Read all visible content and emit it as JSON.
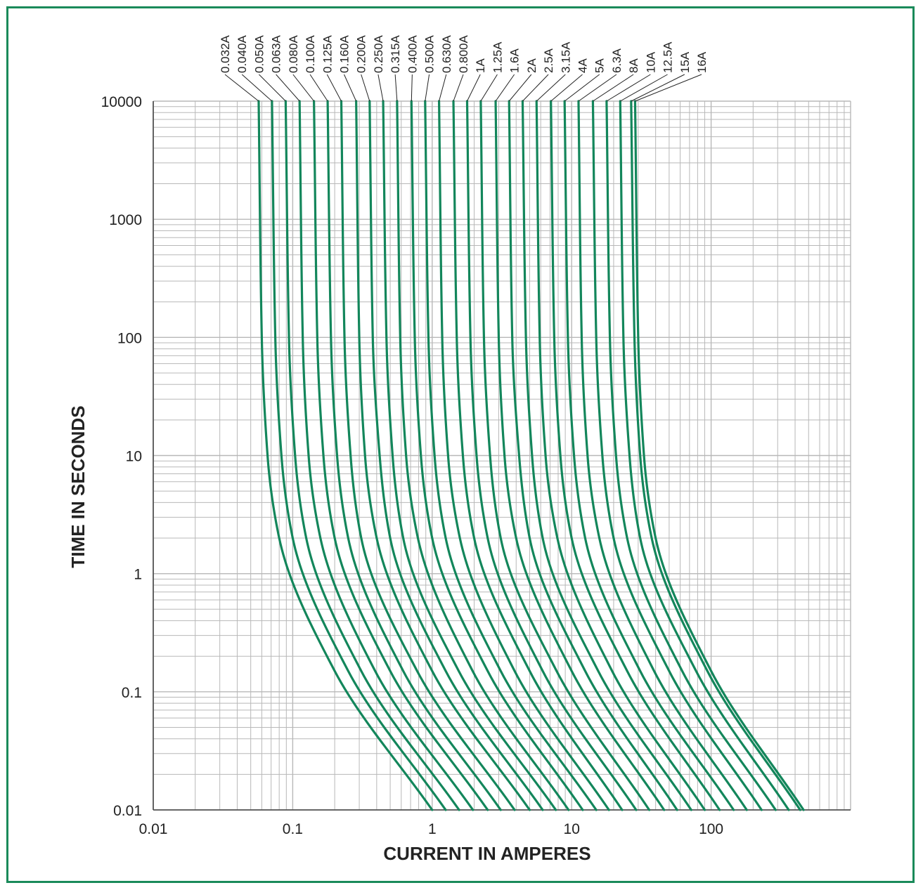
{
  "chart_data": {
    "type": "line",
    "title": "",
    "xlabel": "CURRENT IN AMPERES",
    "ylabel": "TIME IN SECONDS",
    "xscale": "log",
    "yscale": "log",
    "xlim": [
      0.01,
      1000
    ],
    "ylim": [
      0.01,
      10000
    ],
    "grid": true,
    "line_color": "#13865b",
    "frame_color": "#1a8a5a",
    "grid_color": "#b8b8b8",
    "x_ticks": [
      {
        "value": 0.01,
        "label": "0.01"
      },
      {
        "value": 0.1,
        "label": "0.1"
      },
      {
        "value": 1,
        "label": "1"
      },
      {
        "value": 10,
        "label": "10"
      },
      {
        "value": 100,
        "label": "100"
      }
    ],
    "y_ticks": [
      {
        "value": 10000,
        "label": "10000"
      },
      {
        "value": 1000,
        "label": "1000"
      },
      {
        "value": 100,
        "label": "100"
      },
      {
        "value": 10,
        "label": "10"
      },
      {
        "value": 1,
        "label": "1"
      },
      {
        "value": 0.1,
        "label": "0.1"
      },
      {
        "value": 0.01,
        "label": "0.01"
      }
    ],
    "series": [
      {
        "name": "0.032A",
        "points": [
          [
            0.057,
            10000
          ],
          [
            0.06,
            100
          ],
          [
            0.066,
            10
          ],
          [
            0.08,
            2
          ],
          [
            0.2,
            0.15
          ],
          [
            1.0,
            0.01
          ]
        ]
      },
      {
        "name": "0.040A",
        "points": [
          [
            0.071,
            10000
          ],
          [
            0.075,
            100
          ],
          [
            0.083,
            10
          ],
          [
            0.1,
            2
          ],
          [
            0.25,
            0.15
          ],
          [
            1.25,
            0.01
          ]
        ]
      },
      {
        "name": "0.050A",
        "points": [
          [
            0.089,
            10000
          ],
          [
            0.094,
            100
          ],
          [
            0.104,
            10
          ],
          [
            0.125,
            2
          ],
          [
            0.31,
            0.15
          ],
          [
            1.56,
            0.01
          ]
        ]
      },
      {
        "name": "0.063A",
        "points": [
          [
            0.112,
            10000
          ],
          [
            0.118,
            100
          ],
          [
            0.13,
            10
          ],
          [
            0.158,
            2
          ],
          [
            0.39,
            0.15
          ],
          [
            1.96,
            0.01
          ]
        ]
      },
      {
        "name": "0.080A",
        "points": [
          [
            0.142,
            10000
          ],
          [
            0.15,
            100
          ],
          [
            0.166,
            10
          ],
          [
            0.2,
            2
          ],
          [
            0.5,
            0.15
          ],
          [
            2.5,
            0.01
          ]
        ]
      },
      {
        "name": "0.100A",
        "points": [
          [
            0.178,
            10000
          ],
          [
            0.188,
            100
          ],
          [
            0.208,
            10
          ],
          [
            0.25,
            2
          ],
          [
            0.62,
            0.15
          ],
          [
            3.1,
            0.01
          ]
        ]
      },
      {
        "name": "0.125A",
        "points": [
          [
            0.223,
            10000
          ],
          [
            0.235,
            100
          ],
          [
            0.26,
            10
          ],
          [
            0.31,
            2
          ],
          [
            0.78,
            0.15
          ],
          [
            3.9,
            0.01
          ]
        ]
      },
      {
        "name": "0.160A",
        "points": [
          [
            0.285,
            10000
          ],
          [
            0.3,
            100
          ],
          [
            0.33,
            10
          ],
          [
            0.4,
            2
          ],
          [
            1.0,
            0.15
          ],
          [
            5.0,
            0.01
          ]
        ]
      },
      {
        "name": "0.200A",
        "points": [
          [
            0.356,
            10000
          ],
          [
            0.375,
            100
          ],
          [
            0.42,
            10
          ],
          [
            0.5,
            2
          ],
          [
            1.25,
            0.15
          ],
          [
            6.2,
            0.01
          ]
        ]
      },
      {
        "name": "0.250A",
        "points": [
          [
            0.445,
            10000
          ],
          [
            0.47,
            100
          ],
          [
            0.52,
            10
          ],
          [
            0.62,
            2
          ],
          [
            1.55,
            0.15
          ],
          [
            7.7,
            0.01
          ]
        ]
      },
      {
        "name": "0.315A",
        "points": [
          [
            0.56,
            10000
          ],
          [
            0.59,
            100
          ],
          [
            0.65,
            10
          ],
          [
            0.79,
            2
          ],
          [
            1.95,
            0.15
          ],
          [
            9.5,
            0.01
          ]
        ]
      },
      {
        "name": "0.400A",
        "points": [
          [
            0.71,
            10000
          ],
          [
            0.75,
            100
          ],
          [
            0.83,
            10
          ],
          [
            1.0,
            2
          ],
          [
            2.5,
            0.15
          ],
          [
            12,
            0.01
          ]
        ]
      },
      {
        "name": "0.500A",
        "points": [
          [
            0.89,
            10000
          ],
          [
            0.94,
            100
          ],
          [
            1.04,
            10
          ],
          [
            1.25,
            2
          ],
          [
            3.1,
            0.15
          ],
          [
            15,
            0.01
          ]
        ]
      },
      {
        "name": "0.630A",
        "points": [
          [
            1.12,
            10000
          ],
          [
            1.18,
            100
          ],
          [
            1.3,
            10
          ],
          [
            1.58,
            2
          ],
          [
            3.9,
            0.15
          ],
          [
            18.5,
            0.01
          ]
        ]
      },
      {
        "name": "0.800A",
        "points": [
          [
            1.42,
            10000
          ],
          [
            1.5,
            100
          ],
          [
            1.66,
            10
          ],
          [
            2.0,
            2
          ],
          [
            5.0,
            0.15
          ],
          [
            23,
            0.01
          ]
        ]
      },
      {
        "name": "1A",
        "points": [
          [
            1.78,
            10000
          ],
          [
            1.88,
            100
          ],
          [
            2.08,
            10
          ],
          [
            2.5,
            2
          ],
          [
            6.2,
            0.15
          ],
          [
            29,
            0.01
          ]
        ]
      },
      {
        "name": "1.25A",
        "points": [
          [
            2.23,
            10000
          ],
          [
            2.35,
            100
          ],
          [
            2.6,
            10
          ],
          [
            3.1,
            2
          ],
          [
            7.8,
            0.15
          ],
          [
            36,
            0.01
          ]
        ]
      },
      {
        "name": "1.6A",
        "points": [
          [
            2.85,
            10000
          ],
          [
            3.0,
            100
          ],
          [
            3.3,
            10
          ],
          [
            4.0,
            2
          ],
          [
            10,
            0.15
          ],
          [
            46,
            0.01
          ]
        ]
      },
      {
        "name": "2A",
        "points": [
          [
            3.56,
            10000
          ],
          [
            3.75,
            100
          ],
          [
            4.2,
            10
          ],
          [
            5.0,
            2
          ],
          [
            12.5,
            0.15
          ],
          [
            57,
            0.01
          ]
        ]
      },
      {
        "name": "2.5A",
        "points": [
          [
            4.45,
            10000
          ],
          [
            4.7,
            100
          ],
          [
            5.2,
            10
          ],
          [
            6.2,
            2
          ],
          [
            15.5,
            0.15
          ],
          [
            72,
            0.01
          ]
        ]
      },
      {
        "name": "3.15A",
        "points": [
          [
            5.6,
            10000
          ],
          [
            5.9,
            100
          ],
          [
            6.5,
            10
          ],
          [
            7.9,
            2
          ],
          [
            19.5,
            0.15
          ],
          [
            90,
            0.01
          ]
        ]
      },
      {
        "name": "4A",
        "points": [
          [
            7.1,
            10000
          ],
          [
            7.5,
            100
          ],
          [
            8.3,
            10
          ],
          [
            10,
            2
          ],
          [
            25,
            0.15
          ],
          [
            115,
            0.01
          ]
        ]
      },
      {
        "name": "5A",
        "points": [
          [
            8.9,
            10000
          ],
          [
            9.4,
            100
          ],
          [
            10.4,
            10
          ],
          [
            12.5,
            2
          ],
          [
            31,
            0.15
          ],
          [
            145,
            0.01
          ]
        ]
      },
      {
        "name": "6.3A",
        "points": [
          [
            11.2,
            10000
          ],
          [
            11.8,
            100
          ],
          [
            13,
            10
          ],
          [
            15.8,
            2
          ],
          [
            39,
            0.15
          ],
          [
            180,
            0.01
          ]
        ]
      },
      {
        "name": "8A",
        "points": [
          [
            14.2,
            10000
          ],
          [
            15,
            100
          ],
          [
            16.6,
            10
          ],
          [
            20,
            2
          ],
          [
            50,
            0.15
          ],
          [
            230,
            0.01
          ]
        ]
      },
      {
        "name": "10A",
        "points": [
          [
            17.8,
            10000
          ],
          [
            18.8,
            100
          ],
          [
            20.8,
            10
          ],
          [
            25,
            2
          ],
          [
            62,
            0.15
          ],
          [
            290,
            0.01
          ]
        ]
      },
      {
        "name": "12.5A",
        "points": [
          [
            22.3,
            10000
          ],
          [
            23.5,
            100
          ],
          [
            26,
            10
          ],
          [
            31,
            2
          ],
          [
            78,
            0.15
          ],
          [
            360,
            0.01
          ]
        ]
      },
      {
        "name": "15A",
        "points": [
          [
            26.7,
            10000
          ],
          [
            28.2,
            100
          ],
          [
            31,
            10
          ],
          [
            37.5,
            2
          ],
          [
            94,
            0.15
          ],
          [
            435,
            0.01
          ]
        ]
      },
      {
        "name": "16A",
        "points": [
          [
            28.5,
            10000
          ],
          [
            30,
            100
          ],
          [
            33,
            10
          ],
          [
            40,
            2
          ],
          [
            100,
            0.15
          ],
          [
            460,
            0.01
          ]
        ]
      }
    ]
  }
}
